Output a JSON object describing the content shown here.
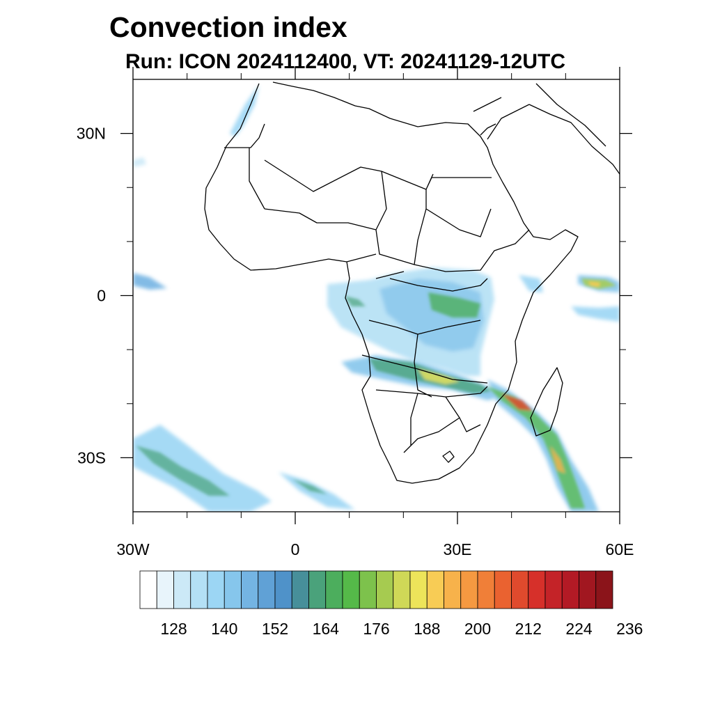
{
  "title": "Convection index",
  "subtitle": "Run: ICON 2024112400,  VT: 20241129-12UTC",
  "map": {
    "lon_range": [
      -30,
      60
    ],
    "lat_range": [
      -40,
      40
    ],
    "x_ticks": [
      {
        "lon": -30,
        "label": "30W"
      },
      {
        "lon": 0,
        "label": "0"
      },
      {
        "lon": 30,
        "label": "30E"
      },
      {
        "lon": 60,
        "label": "60E"
      }
    ],
    "y_ticks": [
      {
        "lat": 30,
        "label": "30N"
      },
      {
        "lat": 0,
        "label": "0"
      },
      {
        "lat": -30,
        "label": "30S"
      }
    ],
    "minor_lon_ticks": [
      -20,
      -10,
      10,
      20,
      40,
      50
    ],
    "minor_lat_ticks": [
      20,
      10,
      -10,
      -20
    ]
  },
  "colorbar": {
    "colors": [
      "#ffffff",
      "#e8f4fb",
      "#cce9f7",
      "#b4e0f5",
      "#9cd6f4",
      "#86c6ec",
      "#74b4e3",
      "#60a1d6",
      "#4f92c9",
      "#478f9a",
      "#4aa27b",
      "#4cae5d",
      "#55b949",
      "#7dc24c",
      "#a6cb50",
      "#cfd857",
      "#ede45a",
      "#f8cc55",
      "#f7b24b",
      "#f59941",
      "#f07f38",
      "#ea6230",
      "#e04a2d",
      "#d6302a",
      "#c42328",
      "#b31a25",
      "#a11720",
      "#8b141a"
    ],
    "labels": [
      "128",
      "140",
      "152",
      "164",
      "176",
      "188",
      "200",
      "212",
      "224",
      "236"
    ]
  }
}
